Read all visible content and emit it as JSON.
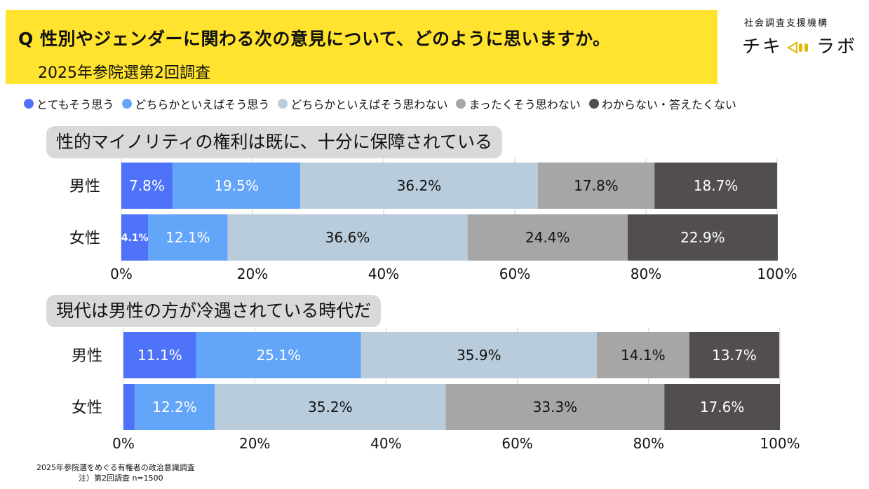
{
  "header": {
    "question": "Q 性別やジェンダーに関わる次の意見について、どのように思いますか。",
    "survey": "2025年参院選第2回調査"
  },
  "brand": {
    "org": "社会調査支援機構",
    "name_left": "チキ",
    "name_right": "ラボ"
  },
  "colors": {
    "banner": "#ffe32e",
    "categories": [
      "#4e73f8",
      "#63a5f8",
      "#b8ccdb",
      "#a6a6a6",
      "#524e4e"
    ]
  },
  "chart_data": [
    {
      "type": "bar",
      "orientation": "horizontal-stacked-100",
      "title": "性的マイノリティの権利は既に、十分に保障されている",
      "categories": [
        "男性",
        "女性"
      ],
      "series": [
        {
          "name": "とてもそう思う",
          "values": [
            7.8,
            4.1
          ],
          "labels": [
            "7.8%",
            "4.1%"
          ]
        },
        {
          "name": "どちらかといえばそう思う",
          "values": [
            19.5,
            12.1
          ],
          "labels": [
            "19.5%",
            "12.1%"
          ]
        },
        {
          "name": "どちらかといえばそう思わない",
          "values": [
            36.2,
            36.6
          ],
          "labels": [
            "36.2%",
            "36.6%"
          ]
        },
        {
          "name": "まったくそう思わない",
          "values": [
            17.8,
            24.4
          ],
          "labels": [
            "17.8%",
            "24.4%"
          ]
        },
        {
          "name": "わからない・答えたくない",
          "values": [
            18.7,
            22.9
          ],
          "labels": [
            "18.7%",
            "22.9%"
          ]
        }
      ],
      "xlim": [
        0,
        100
      ],
      "xticks": [
        "0%",
        "20%",
        "40%",
        "60%",
        "80%",
        "100%"
      ],
      "grid": true,
      "legend": "top"
    },
    {
      "type": "bar",
      "orientation": "horizontal-stacked-100",
      "title": "現代は男性の方が冷遇されている時代だ",
      "categories": [
        "男性",
        "女性"
      ],
      "series": [
        {
          "name": "とてもそう思う",
          "values": [
            11.1,
            1.7
          ],
          "labels": [
            "11.1%",
            ""
          ]
        },
        {
          "name": "どちらかといえばそう思う",
          "values": [
            25.1,
            12.2
          ],
          "labels": [
            "25.1%",
            "12.2%"
          ]
        },
        {
          "name": "どちらかといえばそう思わない",
          "values": [
            35.9,
            35.2
          ],
          "labels": [
            "35.9%",
            "35.2%"
          ]
        },
        {
          "name": "まったくそう思わない",
          "values": [
            14.1,
            33.3
          ],
          "labels": [
            "14.1%",
            "33.3%"
          ]
        },
        {
          "name": "わからない・答えたくない",
          "values": [
            13.7,
            17.6
          ],
          "labels": [
            "13.7%",
            "17.6%"
          ]
        }
      ],
      "xlim": [
        0,
        100
      ],
      "xticks": [
        "0%",
        "20%",
        "40%",
        "60%",
        "80%",
        "100%"
      ],
      "grid": true,
      "legend": "top"
    }
  ],
  "footnote": {
    "line1": "2025年参院選をめぐる有権者の政治意識調査",
    "line2": "注）第2回調査 n=1500"
  }
}
